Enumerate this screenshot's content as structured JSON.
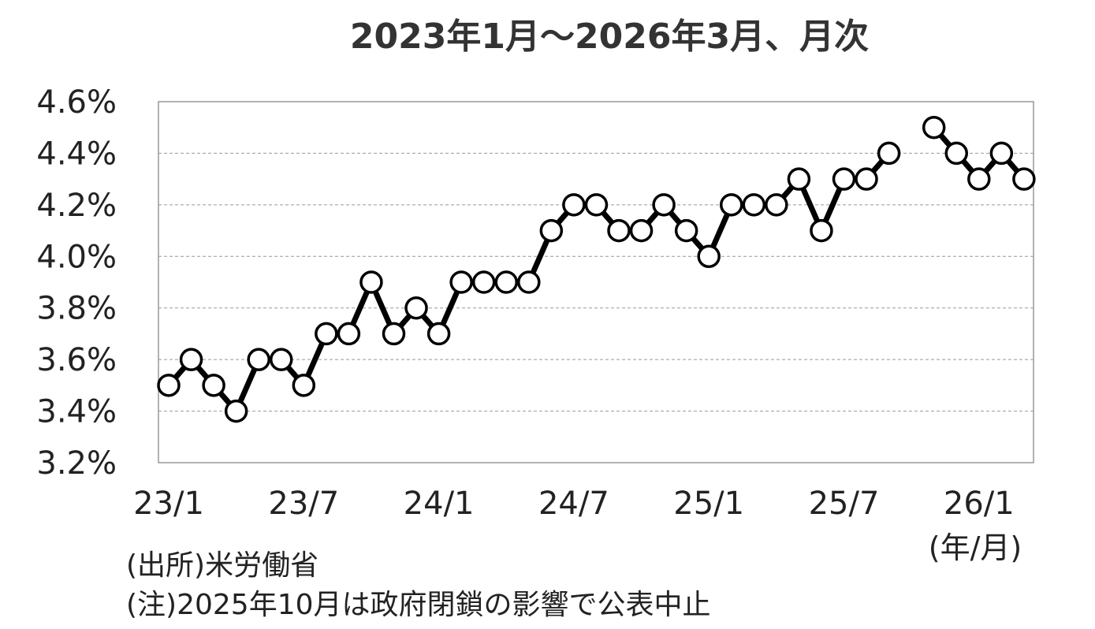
{
  "title": "2023年1月～2026年3月、月次",
  "source": "(出所)米労働省",
  "note": "(注)2025年10月は政府閉鎖の影響で公表中止",
  "colors": {
    "line": "#000000",
    "marker_fill": "#ffffff",
    "grid": "#999999",
    "frame": "#999999"
  },
  "chart_data": {
    "type": "line",
    "title": "2023年1月～2026年3月、月次",
    "xlabel": "",
    "unit_label": "(年/月)",
    "ylabel": "",
    "ylim": [
      3.2,
      4.6
    ],
    "y_ticks": [
      "3.2%",
      "3.4%",
      "3.6%",
      "3.8%",
      "4.0%",
      "4.2%",
      "4.4%",
      "4.6%"
    ],
    "x_tick_labels": [
      {
        "label": "23/1",
        "index": 0
      },
      {
        "label": "23/7",
        "index": 6
      },
      {
        "label": "24/1",
        "index": 12
      },
      {
        "label": "24/7",
        "index": 18
      },
      {
        "label": "25/1",
        "index": 24
      },
      {
        "label": "25/7",
        "index": 30
      },
      {
        "label": "26/1",
        "index": 36
      }
    ],
    "grid": true,
    "x": [
      "23/1",
      "23/2",
      "23/3",
      "23/4",
      "23/5",
      "23/6",
      "23/7",
      "23/8",
      "23/9",
      "23/10",
      "23/11",
      "23/12",
      "24/1",
      "24/2",
      "24/3",
      "24/4",
      "24/5",
      "24/6",
      "24/7",
      "24/8",
      "24/9",
      "24/10",
      "24/11",
      "24/12",
      "25/1",
      "25/2",
      "25/3",
      "25/4",
      "25/5",
      "25/6",
      "25/7",
      "25/8",
      "25/9",
      "25/10",
      "25/11",
      "25/12",
      "26/1",
      "26/2",
      "26/3"
    ],
    "series": [
      {
        "values": [
          3.5,
          3.6,
          3.5,
          3.4,
          3.6,
          3.6,
          3.5,
          3.7,
          3.7,
          3.9,
          3.7,
          3.8,
          3.7,
          3.9,
          3.9,
          3.9,
          3.9,
          4.1,
          4.2,
          4.2,
          4.1,
          4.1,
          4.2,
          4.1,
          4.0,
          4.2,
          4.2,
          4.2,
          4.3,
          4.1,
          4.3,
          4.3,
          4.4,
          null,
          4.5,
          4.4,
          4.3,
          4.4,
          4.3
        ]
      }
    ]
  }
}
